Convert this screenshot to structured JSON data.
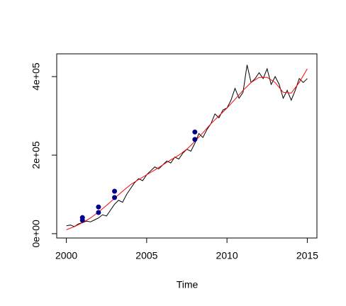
{
  "chart_data": {
    "type": "line",
    "xlabel": "Time",
    "xlim": [
      1999.4,
      2015.6
    ],
    "xticks": [
      2000,
      2005,
      2010,
      2015
    ],
    "ylim": [
      -11000,
      458000
    ],
    "yticks": [
      {
        "value": 0,
        "label": "0e+00"
      },
      {
        "value": 200000,
        "label": "2e+05"
      },
      {
        "value": 400000,
        "label": "4e+05"
      }
    ],
    "series": [
      {
        "style": "line",
        "color": "#000000",
        "x": [
          2000,
          2000.25,
          2000.5,
          2000.75,
          2001,
          2001.25,
          2001.5,
          2001.75,
          2002,
          2002.25,
          2002.5,
          2002.75,
          2003,
          2003.25,
          2003.5,
          2003.75,
          2004,
          2004.25,
          2004.5,
          2004.75,
          2005,
          2005.25,
          2005.5,
          2005.75,
          2006,
          2006.25,
          2006.5,
          2006.75,
          2007,
          2007.25,
          2007.5,
          2007.75,
          2008,
          2008.25,
          2008.5,
          2008.75,
          2009,
          2009.25,
          2009.5,
          2009.75,
          2010,
          2010.25,
          2010.5,
          2010.75,
          2011,
          2011.25,
          2011.5,
          2011.75,
          2012,
          2012.25,
          2012.5,
          2012.75,
          2013,
          2013.25,
          2013.5,
          2013.75,
          2014,
          2014.25,
          2014.5,
          2014.75,
          2015
        ],
        "values": [
          20000,
          22000,
          18000,
          25000,
          28000,
          32000,
          30000,
          35000,
          40000,
          48000,
          45000,
          60000,
          75000,
          85000,
          80000,
          100000,
          115000,
          130000,
          140000,
          135000,
          150000,
          160000,
          170000,
          165000,
          175000,
          185000,
          180000,
          195000,
          190000,
          205000,
          215000,
          210000,
          230000,
          255000,
          245000,
          265000,
          280000,
          305000,
          295000,
          315000,
          320000,
          340000,
          370000,
          345000,
          360000,
          430000,
          385000,
          395000,
          410000,
          395000,
          420000,
          380000,
          400000,
          380000,
          345000,
          365000,
          340000,
          365000,
          395000,
          385000,
          395000
        ]
      },
      {
        "style": "line",
        "color": "#ff0000",
        "x": [
          2000,
          2000.5,
          2001,
          2001.5,
          2002,
          2002.5,
          2003,
          2003.5,
          2004,
          2004.5,
          2005,
          2005.5,
          2006,
          2006.5,
          2007,
          2007.5,
          2008,
          2008.5,
          2009,
          2009.5,
          2010,
          2010.5,
          2011,
          2011.5,
          2012,
          2012.5,
          2013,
          2013.5,
          2014,
          2014.5,
          2015
        ],
        "values": [
          10000,
          18000,
          28000,
          40000,
          55000,
          72000,
          90000,
          108000,
          125000,
          138000,
          150000,
          162000,
          175000,
          188000,
          200000,
          215000,
          235000,
          257000,
          280000,
          300000,
          320000,
          342000,
          365000,
          385000,
          398000,
          398000,
          385000,
          360000,
          358000,
          385000,
          420000
        ]
      },
      {
        "style": "points",
        "color": "#00008b",
        "x": [
          2001,
          2001,
          2002,
          2002,
          2003,
          2003,
          2008,
          2008
        ],
        "values": [
          41000,
          34000,
          68000,
          54000,
          108000,
          92000,
          259000,
          240000
        ]
      }
    ]
  }
}
